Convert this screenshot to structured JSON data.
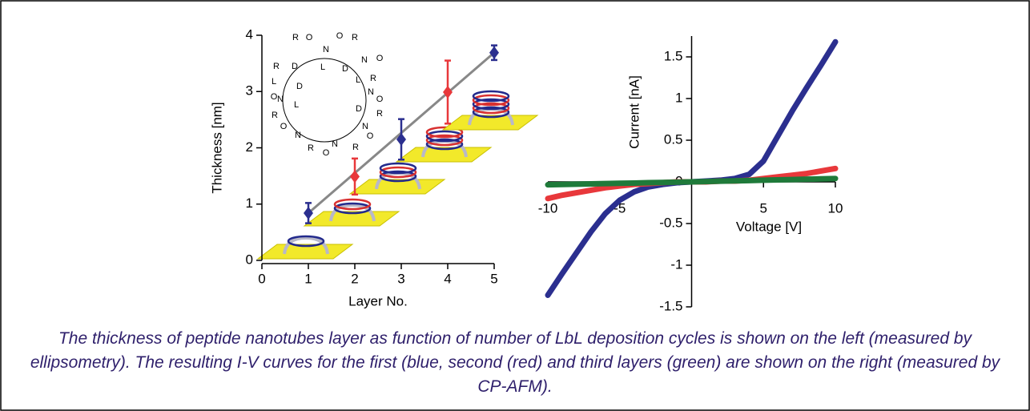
{
  "chart_data": [
    {
      "type": "scatter",
      "xlabel": "Layer No.",
      "ylabel": "Thickness [nm]",
      "x": [
        1,
        2,
        3,
        4,
        5
      ],
      "values": [
        0.84,
        1.49,
        2.15,
        2.99,
        3.69
      ],
      "errors": [
        0.18,
        0.32,
        0.36,
        0.56,
        0.13
      ],
      "colors": [
        "#2b2f8f",
        "#e8383b",
        "#2b2f8f",
        "#e8383b",
        "#2b2f8f"
      ],
      "trend_line": {
        "x": [
          1,
          5
        ],
        "values": [
          0.84,
          3.69
        ],
        "color": "#888888"
      },
      "xlim": [
        0,
        5
      ],
      "xticks": [
        0,
        1,
        2,
        3,
        4,
        5
      ],
      "ylim": [
        0,
        4
      ],
      "yticks": [
        0,
        1,
        2,
        3,
        4
      ],
      "molecule_labels": [
        "R",
        "O",
        "N",
        "O",
        "R",
        "N",
        "O",
        "R",
        "N",
        "O",
        "R",
        "N",
        "O",
        "R",
        "N",
        "O",
        "R",
        "N",
        "O",
        "R",
        "N",
        "O",
        "R",
        "D",
        "L",
        "L",
        "D",
        "D",
        "L",
        "L",
        "D"
      ]
    },
    {
      "type": "line",
      "xlabel": "Voltage [V]",
      "ylabel": "Current [nA]",
      "x": [
        -10,
        -9,
        -8,
        -7,
        -6,
        -5,
        -4,
        -3,
        -2,
        -1,
        0,
        1,
        2,
        3,
        4,
        5,
        6,
        7,
        8,
        9,
        10
      ],
      "series": [
        {
          "color": "#2b2f8f",
          "values": [
            -1.36,
            -1.1,
            -0.85,
            -0.6,
            -0.38,
            -0.22,
            -0.12,
            -0.06,
            -0.03,
            -0.01,
            0,
            0.01,
            0.02,
            0.04,
            0.09,
            0.25,
            0.55,
            0.85,
            1.13,
            1.4,
            1.68
          ]
        },
        {
          "color": "#e8383b",
          "values": [
            -0.2,
            -0.16,
            -0.13,
            -0.1,
            -0.07,
            -0.05,
            -0.03,
            -0.02,
            -0.01,
            0,
            0,
            0,
            0.01,
            0.01,
            0.02,
            0.04,
            0.06,
            0.08,
            0.1,
            0.13,
            0.16
          ]
        },
        {
          "color": "#1f7a3a",
          "values": [
            -0.035,
            -0.031,
            -0.028,
            -0.024,
            -0.021,
            -0.017,
            -0.014,
            -0.01,
            -0.007,
            -0.003,
            0,
            0.004,
            0.008,
            0.012,
            0.016,
            0.02,
            0.024,
            0.028,
            0.032,
            0.036,
            0.04
          ]
        }
      ],
      "xlim": [
        -10,
        10
      ],
      "xticks": [
        -10,
        -5,
        5,
        10
      ],
      "ylim": [
        -1.5,
        1.75
      ],
      "yticks": [
        -1.5,
        -1,
        -0.5,
        0,
        0.5,
        1,
        1.5
      ]
    }
  ],
  "caption": "The thickness of peptide nanotubes layer as function of number of LbL deposition cycles is shown on the left (measured by ellipsometry). The resulting I-V curves for the first (blue, second (red) and third layers (green) are shown on the right (measured by CP-AFM)."
}
